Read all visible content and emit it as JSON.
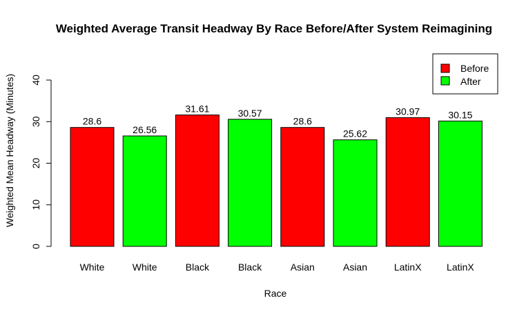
{
  "chart_data": {
    "type": "bar",
    "title": "Weighted Average Transit Headway By Race Before/After System Reimagining",
    "xlabel": "Race",
    "ylabel": "Weighted Mean Headway (Minutes)",
    "ylim": [
      0,
      40
    ],
    "yticks": [
      "0",
      "10",
      "20",
      "30",
      "40"
    ],
    "categories": [
      "White",
      "White",
      "Black",
      "Black",
      "Asian",
      "Asian",
      "LatinX",
      "LatinX"
    ],
    "values": [
      28.6,
      26.56,
      31.61,
      30.57,
      28.6,
      25.62,
      30.97,
      30.15
    ],
    "value_labels": [
      "28.6",
      "26.56",
      "31.61",
      "30.57",
      "28.6",
      "25.62",
      "30.97",
      "30.15"
    ],
    "bar_series": [
      "Before",
      "After",
      "Before",
      "After",
      "Before",
      "After",
      "Before",
      "After"
    ],
    "legend": {
      "position": "top-right",
      "entries": [
        {
          "name": "Before",
          "color": "#ff0000"
        },
        {
          "name": "After",
          "color": "#00ff00"
        }
      ]
    },
    "grid": false
  }
}
